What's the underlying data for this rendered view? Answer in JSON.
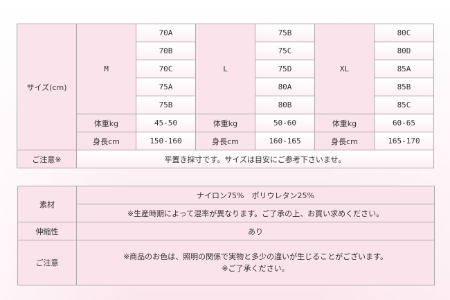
{
  "size_table": {
    "size_label": "サイズ(cm)",
    "groups": [
      {
        "size": "M",
        "cups": [
          "70A",
          "70B",
          "70C",
          "75A",
          "75B"
        ],
        "weight_label": "体重kg",
        "weight": "45-50",
        "height_label": "身長cm",
        "height": "150-160"
      },
      {
        "size": "L",
        "cups": [
          "75B",
          "75C",
          "75D",
          "80A",
          "80B"
        ],
        "weight_label": "体重kg",
        "weight": "50-60",
        "height_label": "身長cm",
        "height": "160-165"
      },
      {
        "size": "XL",
        "cups": [
          "80C",
          "80D",
          "85A",
          "85B",
          "85C"
        ],
        "weight_label": "体重kg",
        "weight": "60-65",
        "height_label": "身長cm",
        "height": "165-170"
      }
    ],
    "note_label": "ご注意※",
    "note": "平置き採寸です。サイズは目安にご参考下さいませ。"
  },
  "spec_table": {
    "material_label": "素材",
    "material": "ナイロン75%　ポリウレタン25%",
    "material_note": "※生産時期によって混率が異なります。ご了承の上、お買い求めください。",
    "stretch_label": "伸縮性",
    "stretch": "あり",
    "caution_label": "ご注意",
    "caution_line1": "※商品のお色は、照明の関係で実物と多少の違いが生じることがございます。",
    "caution_line2": "※ご了承ください。"
  }
}
